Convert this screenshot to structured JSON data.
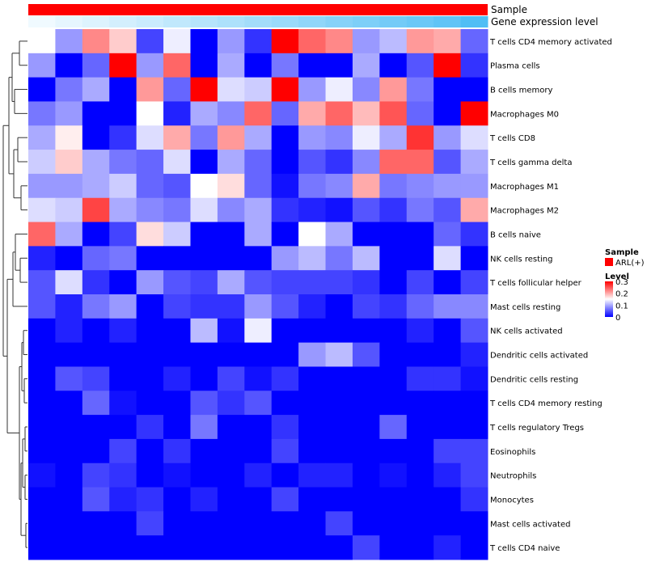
{
  "chart_data": {
    "type": "heatmap",
    "title": "",
    "annotations": [
      {
        "name": "Sample",
        "type": "categorical"
      },
      {
        "name": "Gene expression level",
        "type": "continuous"
      }
    ],
    "sample_group": "ARL(+)",
    "rows": [
      "T cells CD4 memory activated",
      "Plasma cells",
      "B cells memory",
      "Macrophages M0",
      "T cells CD8",
      "T cells gamma delta",
      "Macrophages M1",
      "Macrophages M2",
      "B cells naive",
      "NK cells resting",
      "T cells follicular helper",
      "Mast cells resting",
      "NK cells activated",
      "Dendritic cells activated",
      "Dendritic cells resting",
      "T cells CD4 memory resting",
      "T cells regulatory  Tregs",
      "Eosinophils",
      "Neutrophils",
      "Monocytes",
      "Mast cells activated",
      "T cells CD4 naive"
    ],
    "columns": 17,
    "values": [
      [
        0.15,
        0.09,
        0.22,
        0.18,
        0.04,
        0.14,
        0.0,
        0.09,
        0.03,
        0.3,
        0.24,
        0.22,
        0.09,
        0.11,
        0.21,
        0.2,
        0.06
      ],
      [
        0.09,
        0.0,
        0.06,
        0.3,
        0.09,
        0.24,
        0.0,
        0.1,
        0.0,
        0.07,
        0.0,
        0.0,
        0.1,
        0.0,
        0.05,
        0.3,
        0.03
      ],
      [
        0.0,
        0.07,
        0.1,
        0.0,
        0.21,
        0.06,
        0.3,
        0.13,
        0.12,
        0.3,
        0.09,
        0.14,
        0.08,
        0.21,
        0.07,
        0.0,
        0.0
      ],
      [
        0.07,
        0.09,
        0.0,
        0.0,
        0.15,
        0.02,
        0.1,
        0.08,
        0.24,
        0.06,
        0.2,
        0.24,
        0.19,
        0.25,
        0.06,
        0.0,
        0.3
      ],
      [
        0.1,
        0.16,
        0.0,
        0.03,
        0.13,
        0.2,
        0.07,
        0.21,
        0.1,
        0.0,
        0.09,
        0.08,
        0.14,
        0.1,
        0.27,
        0.09,
        0.13
      ],
      [
        0.12,
        0.18,
        0.1,
        0.07,
        0.06,
        0.13,
        0.0,
        0.1,
        0.06,
        0.0,
        0.05,
        0.03,
        0.08,
        0.24,
        0.24,
        0.05,
        0.1
      ],
      [
        0.09,
        0.09,
        0.1,
        0.12,
        0.06,
        0.05,
        0.15,
        0.17,
        0.06,
        0.01,
        0.07,
        0.08,
        0.2,
        0.07,
        0.08,
        0.09,
        0.09
      ],
      [
        0.13,
        0.12,
        0.26,
        0.1,
        0.08,
        0.07,
        0.13,
        0.08,
        0.1,
        0.03,
        0.02,
        0.01,
        0.05,
        0.03,
        0.07,
        0.05,
        0.2
      ],
      [
        0.24,
        0.1,
        0.0,
        0.04,
        0.17,
        0.12,
        0.0,
        0.0,
        0.1,
        0.0,
        0.15,
        0.1,
        0.0,
        0.0,
        0.0,
        0.06,
        0.03
      ],
      [
        0.02,
        0.0,
        0.06,
        0.07,
        0.0,
        0.0,
        0.0,
        0.0,
        0.0,
        0.09,
        0.11,
        0.07,
        0.11,
        0.0,
        0.0,
        0.13,
        0.0
      ],
      [
        0.05,
        0.13,
        0.03,
        0.0,
        0.09,
        0.05,
        0.04,
        0.1,
        0.05,
        0.04,
        0.04,
        0.04,
        0.03,
        0.0,
        0.04,
        0.0,
        0.04
      ],
      [
        0.05,
        0.02,
        0.07,
        0.09,
        0.0,
        0.04,
        0.03,
        0.03,
        0.09,
        0.05,
        0.02,
        0.0,
        0.04,
        0.03,
        0.06,
        0.08,
        0.08
      ],
      [
        0.0,
        0.02,
        0.0,
        0.02,
        0.0,
        0.0,
        0.11,
        0.01,
        0.14,
        0.0,
        0.0,
        0.0,
        0.0,
        0.0,
        0.02,
        0.0,
        0.05
      ],
      [
        0.0,
        0.0,
        0.0,
        0.0,
        0.0,
        0.0,
        0.0,
        0.0,
        0.0,
        0.0,
        0.09,
        0.11,
        0.05,
        0.0,
        0.0,
        0.0,
        0.02
      ],
      [
        0.0,
        0.05,
        0.04,
        0.0,
        0.0,
        0.02,
        0.0,
        0.04,
        0.01,
        0.03,
        0.0,
        0.0,
        0.0,
        0.0,
        0.03,
        0.03,
        0.01
      ],
      [
        0.0,
        0.0,
        0.06,
        0.01,
        0.0,
        0.0,
        0.05,
        0.03,
        0.05,
        0.0,
        0.0,
        0.0,
        0.0,
        0.0,
        0.0,
        0.0,
        0.0
      ],
      [
        0.0,
        0.0,
        0.0,
        0.0,
        0.03,
        0.0,
        0.07,
        0.0,
        0.0,
        0.03,
        0.0,
        0.0,
        0.0,
        0.06,
        0.0,
        0.0,
        0.0
      ],
      [
        0.0,
        0.0,
        0.0,
        0.04,
        0.0,
        0.03,
        0.0,
        0.0,
        0.0,
        0.04,
        0.0,
        0.0,
        0.0,
        0.0,
        0.0,
        0.04,
        0.04
      ],
      [
        0.01,
        0.0,
        0.04,
        0.03,
        0.0,
        0.01,
        0.0,
        0.0,
        0.02,
        0.0,
        0.02,
        0.02,
        0.0,
        0.01,
        0.0,
        0.02,
        0.04
      ],
      [
        0.0,
        0.0,
        0.05,
        0.02,
        0.03,
        0.0,
        0.02,
        0.0,
        0.0,
        0.04,
        0.0,
        0.0,
        0.0,
        0.0,
        0.0,
        0.0,
        0.03
      ],
      [
        0.0,
        0.0,
        0.0,
        0.0,
        0.04,
        0.0,
        0.0,
        0.0,
        0.0,
        0.0,
        0.0,
        0.04,
        0.0,
        0.0,
        0.0,
        0.0,
        0.0
      ],
      [
        0.0,
        0.0,
        0.0,
        0.0,
        0.0,
        0.0,
        0.0,
        0.0,
        0.0,
        0.0,
        0.0,
        0.0,
        0.04,
        0.0,
        0.0,
        0.02,
        0.0
      ]
    ],
    "gene_expression_level": [
      0.0,
      0.06,
      0.12,
      0.18,
      0.24,
      0.3,
      0.36,
      0.42,
      0.48,
      0.54,
      0.6,
      0.66,
      0.72,
      0.78,
      0.84,
      0.9,
      1.0
    ],
    "color_scale": {
      "min": 0,
      "mid": 0.15,
      "max": 0.3,
      "low": "#0000ff",
      "mid_color": "#ffffff",
      "high": "#ff0000"
    },
    "legend": {
      "sample_title": "Sample",
      "sample_label": "ARL(+)",
      "sample_color": "#ff0000",
      "level_title": "Level",
      "level_ticks": [
        "0.3",
        "0.2",
        "0.1",
        "0"
      ],
      "level_tick_values": [
        0.3,
        0.2,
        0.1,
        0
      ]
    },
    "dendrogram": "rows clustered (hierarchical)"
  }
}
